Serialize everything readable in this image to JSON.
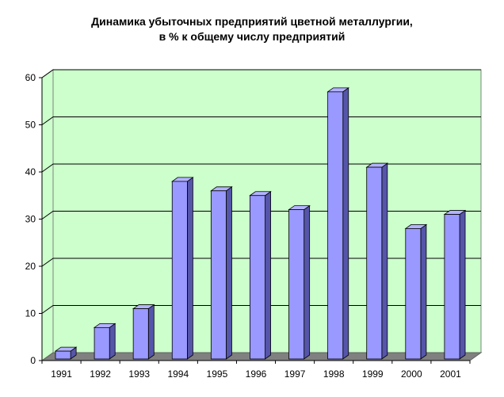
{
  "chart_data": {
    "type": "bar",
    "title_lines": [
      "Динамика убыточных предприятий цветной металлургии,",
      "в % к общему числу предприятий"
    ],
    "categories": [
      "1991",
      "1992",
      "1993",
      "1994",
      "1995",
      "1996",
      "1997",
      "1998",
      "1999",
      "2000",
      "2001"
    ],
    "values": [
      2,
      7,
      11,
      38,
      36,
      35,
      32,
      57,
      41,
      28,
      31
    ],
    "ylim": [
      0,
      60
    ],
    "yticks": [
      0,
      10,
      20,
      30,
      40,
      50,
      60
    ],
    "grid": true,
    "three_d": true,
    "colors": {
      "plot_background": "#ccffcc",
      "bar_front": "#9999ff",
      "bar_side": "#5555aa",
      "bar_top": "#b3b3ff",
      "floor": "#808080",
      "gridline": "#000000"
    }
  }
}
